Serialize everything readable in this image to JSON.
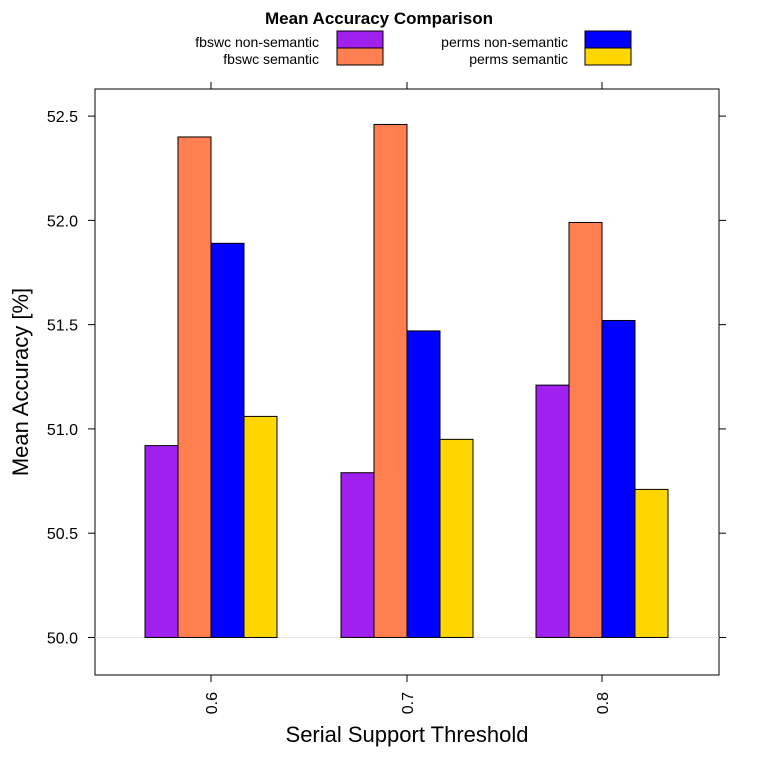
{
  "chart_data": {
    "type": "bar",
    "title": "Mean Accuracy Comparison",
    "xlabel": "Serial Support Threshold",
    "ylabel": "Mean Accuracy [%]",
    "categories": [
      "0.6",
      "0.7",
      "0.8"
    ],
    "ylim": [
      49.82,
      52.63
    ],
    "yticks": [
      "50.0",
      "50.5",
      "51.0",
      "51.5",
      "52.0",
      "52.5"
    ],
    "baseline": 50.0,
    "grid": false,
    "legend_position": "top",
    "series": [
      {
        "name": "fbswc non-semantic",
        "color": "#A020F0",
        "values": [
          50.92,
          50.79,
          51.21
        ]
      },
      {
        "name": "fbswc semantic",
        "color": "#FF7F50",
        "values": [
          52.4,
          52.46,
          51.99
        ]
      },
      {
        "name": "perms non-semantic",
        "color": "#0000FF",
        "values": [
          51.89,
          51.47,
          51.52
        ]
      },
      {
        "name": "perms semantic",
        "color": "#FFD700",
        "values": [
          51.06,
          50.95,
          50.71
        ]
      }
    ]
  }
}
